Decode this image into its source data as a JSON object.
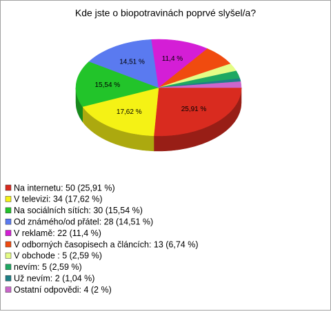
{
  "chart_data": {
    "type": "pie3d",
    "title": "Kde jste o biopotravinách poprvé slyšel/a?",
    "categories": [
      "Na internetu: 50 (25,91 %)",
      "V televizi: 34 (17,62 %)",
      "Na sociálních sítích: 30 (15,54 %)",
      "Od známého/od přátel: 28 (14,51 %)",
      "V reklamě: 22 (11,4 %)",
      "V odborných časopisech a článcích: 13 (6,74 %)",
      "V obchode : 5 (2,59 %)",
      "nevím: 5 (2,59 %)",
      "Už nevím: 2 (1,04 %)",
      "Ostatní odpovědi: 4 (2 %)"
    ],
    "values": [
      25.91,
      17.62,
      15.54,
      14.51,
      11.4,
      6.74,
      2.59,
      2.59,
      1.04,
      2
    ],
    "value_labels": [
      "25,91 %",
      "17,62 %",
      "15,54 %",
      "14,51 %",
      "11,4 %",
      null,
      null,
      null,
      null,
      null
    ],
    "colors": [
      "#d92b1f",
      "#f5f215",
      "#22c42a",
      "#5a7af0",
      "#d41ed6",
      "#f04b0f",
      "#e4fc86",
      "#1fa862",
      "#1e7f86",
      "#cc66cc"
    ],
    "legend": "bottom-left"
  }
}
